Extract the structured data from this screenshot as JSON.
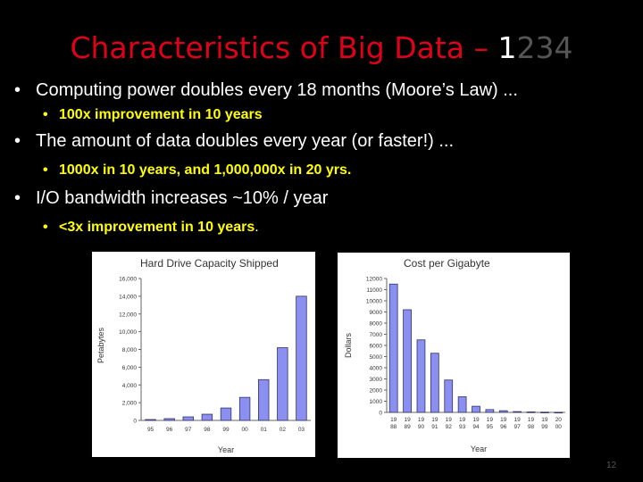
{
  "title": {
    "main": "Characteristics of Big Data – ",
    "num1": "1",
    "num2": "234"
  },
  "bullets": [
    {
      "text": "Computing power doubles every 18 months (Moore’s Law) ...",
      "sub": "100x improvement in 10 years",
      "sub_tail": ""
    },
    {
      "text": "The amount of data doubles every year (or faster!) ...",
      "sub": "1000x in 10 years, and 1,000,000x in 20 yrs.",
      "sub_tail": ""
    },
    {
      "text": "I/O bandwidth increases ~10% / year",
      "sub": "<3x improvement in 10 years",
      "sub_tail": "."
    }
  ],
  "bullet_glyph": "•",
  "page_number": "12",
  "colors": {
    "title": "#e0001a",
    "sub_bullet": "#ffff00",
    "bar_fill": "#8a8ff0",
    "bar_stroke": "#333366"
  },
  "chart_data": [
    {
      "type": "bar",
      "title": "Hard Drive Capacity Shipped",
      "xlabel": "Year",
      "ylabel": "Petabytes",
      "ylim": [
        0,
        16000
      ],
      "yticks": [
        0,
        2000,
        4000,
        6000,
        8000,
        10000,
        12000,
        14000,
        16000
      ],
      "ytick_labels": [
        "0",
        "2,000",
        "4,000",
        "6,000",
        "8,000",
        "10,000",
        "12,000",
        "14,000",
        "16,000"
      ],
      "categories": [
        "95",
        "96",
        "97",
        "98",
        "99",
        "00",
        "01",
        "02",
        "03"
      ],
      "values": [
        100,
        200,
        400,
        700,
        1400,
        2600,
        4600,
        8200,
        14000
      ]
    },
    {
      "type": "bar",
      "title": "Cost per Gigabyte",
      "xlabel": "Year",
      "ylabel": "Dollars",
      "ylim": [
        0,
        12000
      ],
      "yticks": [
        0,
        1000,
        2000,
        3000,
        4000,
        5000,
        6000,
        7000,
        8000,
        9000,
        10000,
        11000,
        12000
      ],
      "ytick_labels": [
        "0",
        "1000",
        "2000",
        "3000",
        "4000",
        "5000",
        "6000",
        "7000",
        "8000",
        "9000",
        "10000",
        "11000",
        "12000"
      ],
      "categories": [
        "1988",
        "1989",
        "1990",
        "1991",
        "1992",
        "1993",
        "1994",
        "1995",
        "1996",
        "1997",
        "1998",
        "1999",
        "2000"
      ],
      "category_labels": [
        [
          "19",
          "88"
        ],
        [
          "19",
          "89"
        ],
        [
          "19",
          "90"
        ],
        [
          "19",
          "91"
        ],
        [
          "19",
          "92"
        ],
        [
          "19",
          "93"
        ],
        [
          "19",
          "94"
        ],
        [
          "19",
          "95"
        ],
        [
          "19",
          "96"
        ],
        [
          "19",
          "97"
        ],
        [
          "19",
          "98"
        ],
        [
          "19",
          "99"
        ],
        [
          "20",
          "00"
        ]
      ],
      "values": [
        11500,
        9200,
        6500,
        5300,
        2900,
        1400,
        550,
        250,
        150,
        70,
        40,
        20,
        10
      ]
    }
  ]
}
